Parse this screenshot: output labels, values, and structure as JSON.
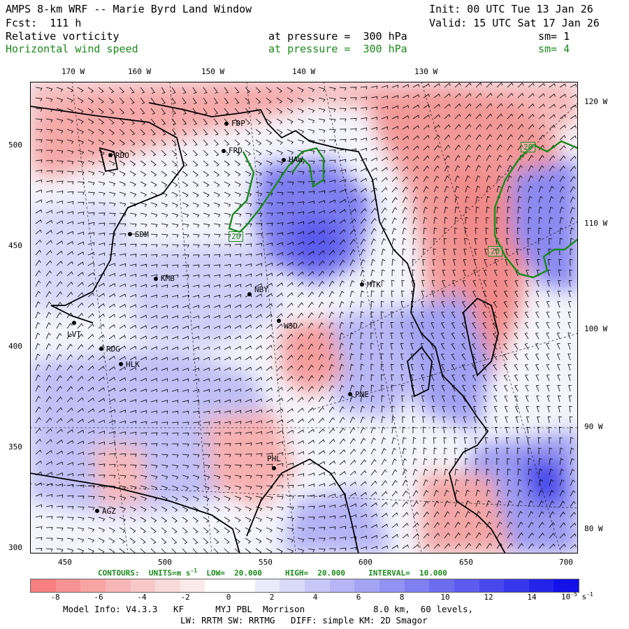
{
  "header": {
    "title": "AMPS 8-km WRF -- Marie Byrd Land Window",
    "init": "Init: 00 UTC Tue 13 Jan 26",
    "forecast": "Fcst:  111 h",
    "valid": "Valid: 15 UTC Sat 17 Jan 26",
    "field1_name": "Relative vorticity",
    "field1_level": "at pressure =  300 hPa",
    "field1_sm": "sm= 1",
    "field2_name": "Horizontal wind speed",
    "field2_level": "at pressure =  300 hPa",
    "field2_sm": "sm= 4"
  },
  "colors": {
    "field1": "#000000",
    "field2": "#1a8a1a",
    "contour": "#1a8a1a",
    "coast": "#000000"
  },
  "top_lon_labels": [
    "170 W",
    "160 W",
    "150 W",
    "140 W",
    "130 W"
  ],
  "right_lon_labels": [
    "120 W",
    "110 W",
    "100 W",
    "90 W",
    "80 W"
  ],
  "y_axis_labels": [
    "500",
    "450",
    "400",
    "350",
    "300"
  ],
  "x_axis_labels": [
    "450",
    "500",
    "550",
    "600",
    "650",
    "700"
  ],
  "stations": [
    {
      "name": "RDO"
    },
    {
      "name": "FDP"
    },
    {
      "name": "FRD"
    },
    {
      "name": "HAW"
    },
    {
      "name": "SDM"
    },
    {
      "name": "KMB"
    },
    {
      "name": "NBY"
    },
    {
      "name": "MTK"
    },
    {
      "name": "LVT"
    },
    {
      "name": "WSD"
    },
    {
      "name": "RDG"
    },
    {
      "name": "HLK"
    },
    {
      "name": "PNE"
    },
    {
      "name": "PHL"
    },
    {
      "name": "AGZ"
    }
  ],
  "contour_labels": [
    "20",
    "20",
    "20"
  ],
  "contour_legend": {
    "units": "CONTOURS:  UNITS=m s",
    "sup": "-1",
    "low": "LOW=  20.000",
    "high": "HIGH=  20.000",
    "interval": "INTERVAL=  10.000"
  },
  "colorbar": {
    "tick_labels": [
      "-8",
      "-6",
      "-4",
      "-2",
      "0",
      "2",
      "4",
      "6",
      "8",
      "10",
      "12",
      "14"
    ],
    "unit_label": "10",
    "unit_exp": "-5",
    "unit_suffix": " s",
    "unit_sup": "-1",
    "colors": [
      "#f77f7f",
      "#f79292",
      "#f7a4a4",
      "#f7b6b6",
      "#f8c8c8",
      "#f9dada",
      "#faeaea",
      "#ffffff",
      "#ffffff",
      "#eaeafb",
      "#dadaf9",
      "#c8c8f8",
      "#b6b6f6",
      "#a4a4f5",
      "#9292f3",
      "#7f7ff1",
      "#6d6df0",
      "#5b5bee",
      "#4848ec",
      "#3636eb",
      "#2424e9",
      "#1111e8"
    ]
  },
  "model_info": {
    "line1": "Model Info: V4.3.3   KF      MYJ PBL  Morrison             8.0 km,  60 levels,",
    "line2": "LW: RRTM SW: RRTMG   DIFF: simple KM: 2D Smagor"
  }
}
